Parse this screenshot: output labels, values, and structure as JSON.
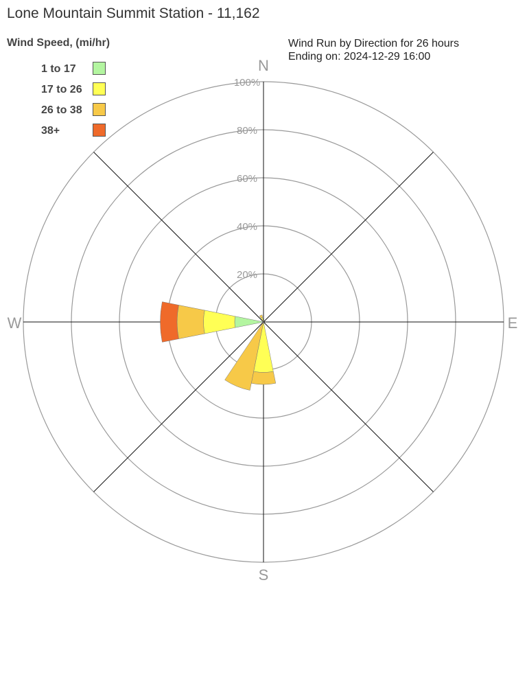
{
  "header": {
    "title": "Lone Mountain Summit Station - 11,162",
    "legend_title": "Wind Speed, (mi/hr)",
    "subtitle_line1": "Wind Run by Direction for 26 hours",
    "subtitle_line2": "Ending on: 2024-12-29 16:00"
  },
  "legend": [
    {
      "label": "1 to 17",
      "color": "#b3f5a0"
    },
    {
      "label": "17 to 26",
      "color": "#ffff55"
    },
    {
      "label": "26 to 38",
      "color": "#f7c948"
    },
    {
      "label": "38+",
      "color": "#ef6a2a"
    }
  ],
  "chart_data": {
    "type": "wind-rose",
    "title": "Lone Mountain Summit Station - 11,162",
    "subtitle": "Wind Run by Direction for 26 hours",
    "radial_max": 100,
    "radial_ticks": [
      20,
      40,
      60,
      80,
      100
    ],
    "radial_tick_labels": [
      "20%",
      "40%",
      "60%",
      "80%",
      "100%"
    ],
    "compass_labels": {
      "N": "N",
      "E": "E",
      "S": "S",
      "W": "W"
    },
    "spoke_angles": [
      0,
      45,
      90,
      135,
      180,
      225,
      270,
      315
    ],
    "sector_width": 22.5,
    "speed_bins": [
      "1 to 17",
      "17 to 26",
      "26 to 38",
      "38+"
    ],
    "directions": [
      {
        "dir": "NNW",
        "angle": 337.5,
        "cumulative": [
          0,
          2,
          3,
          3
        ]
      },
      {
        "dir": "S",
        "angle": 180,
        "cumulative": [
          0,
          21,
          26,
          26
        ]
      },
      {
        "dir": "SSW",
        "angle": 202.5,
        "cumulative": [
          0,
          0,
          29,
          29
        ]
      },
      {
        "dir": "W",
        "angle": 270,
        "cumulative": [
          12,
          25,
          36,
          43
        ]
      }
    ]
  }
}
